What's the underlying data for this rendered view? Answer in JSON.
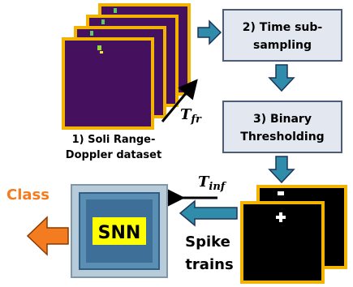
{
  "nodes": [
    {
      "label": [
        "1) Soli Range-",
        "Doppler dataset"
      ]
    },
    {
      "label": [
        "2) Time sub-",
        "sampling"
      ]
    },
    {
      "label": [
        "3) Binary",
        "Thresholding"
      ]
    },
    {
      "label": [
        "Spike",
        "trains"
      ]
    },
    {
      "label": [
        "SNN"
      ]
    },
    {
      "label": [
        "Class"
      ]
    }
  ],
  "annotations": [
    {
      "symbol": "T",
      "subscript": "fr"
    },
    {
      "symbol": "T",
      "subscript": "inf"
    }
  ]
}
